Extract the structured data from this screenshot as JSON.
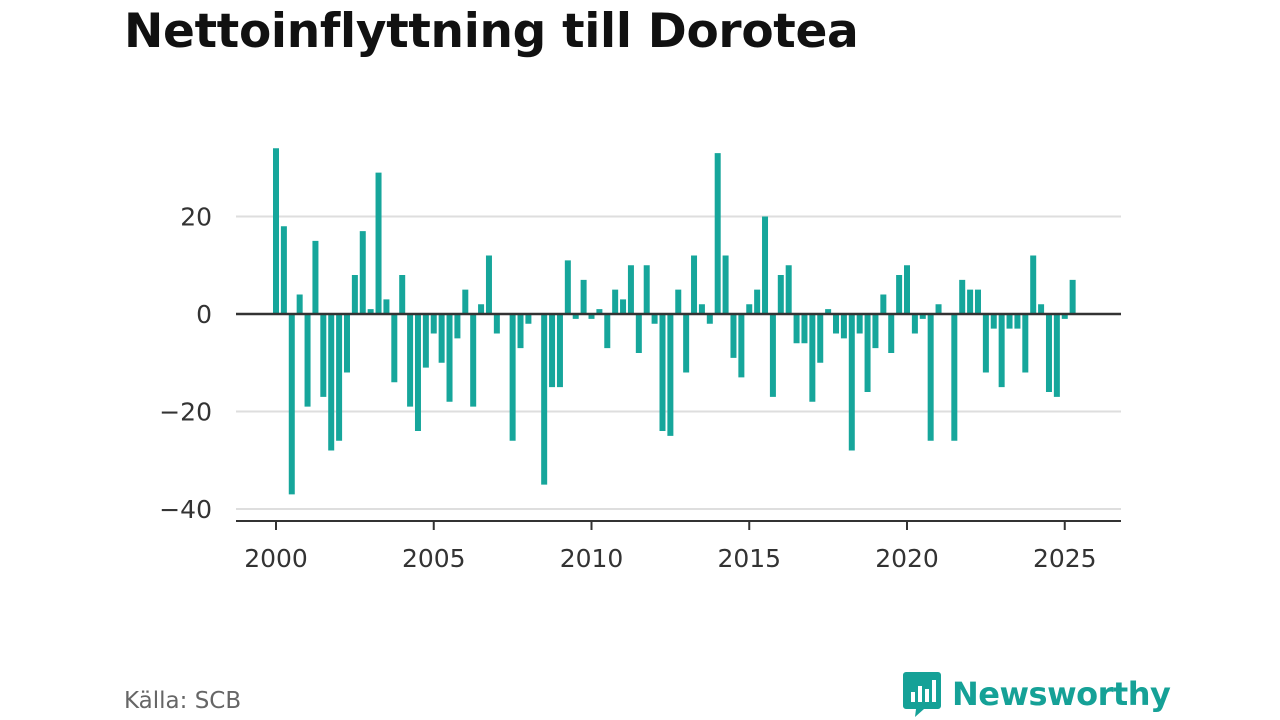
{
  "colors": {
    "bar": "#16a69b",
    "grid": "#dedede",
    "axis": "#333333",
    "brand": "#15a197"
  },
  "footer": {
    "source": "Källa: SCB",
    "brand": "Newsworthy"
  },
  "chart_data": {
    "type": "bar",
    "title": "Nettoinflyttning till Dorotea",
    "xlabel": "",
    "ylabel": "",
    "x_ticks": [
      "2000",
      "2005",
      "2010",
      "2015",
      "2020",
      "2025"
    ],
    "y_ticks": [
      "20",
      "0",
      "−20",
      "−40"
    ],
    "ylim": [
      -42,
      36
    ],
    "xlim": [
      1999.6,
      2026.8
    ],
    "grid": true,
    "series": [
      {
        "x": [
          2000.0,
          2000.25,
          2000.5,
          2000.75,
          2001.0,
          2001.25,
          2001.5,
          2001.75,
          2002.0,
          2002.25,
          2002.5,
          2002.75,
          2003.0,
          2003.25,
          2003.5,
          2003.75,
          2004.0,
          2004.25,
          2004.5,
          2004.75,
          2005.0,
          2005.25,
          2005.5,
          2005.75,
          2006.0,
          2006.25,
          2006.5,
          2006.75,
          2007.0,
          2007.25,
          2007.5,
          2007.75,
          2008.0,
          2008.25,
          2008.5,
          2008.75,
          2009.0,
          2009.25,
          2009.5,
          2009.75,
          2010.0,
          2010.25,
          2010.5,
          2010.75,
          2011.0,
          2011.25,
          2011.5,
          2011.75,
          2012.0,
          2012.25,
          2012.5,
          2012.75,
          2013.0,
          2013.25,
          2013.5,
          2013.75,
          2014.0,
          2014.25,
          2014.5,
          2014.75,
          2015.0,
          2015.25,
          2015.5,
          2015.75,
          2016.0,
          2016.25,
          2016.5,
          2016.75,
          2017.0,
          2017.25,
          2017.5,
          2017.75,
          2018.0,
          2018.25,
          2018.5,
          2018.75,
          2019.0,
          2019.25,
          2019.5,
          2019.75,
          2020.0,
          2020.25,
          2020.5,
          2020.75,
          2021.0,
          2021.25,
          2021.5,
          2021.75,
          2022.0,
          2022.25,
          2022.5,
          2022.75,
          2023.0,
          2023.25,
          2023.5,
          2023.75,
          2024.0,
          2024.25,
          2024.5,
          2024.75,
          2025.0,
          2025.25
        ],
        "values": [
          34,
          18,
          -37,
          4,
          -19,
          15,
          -17,
          -28,
          -26,
          -12,
          8,
          17,
          1,
          29,
          3,
          -14,
          8,
          -19,
          -24,
          -11,
          -4,
          -10,
          -18,
          -5,
          5,
          -19,
          2,
          12,
          -4,
          0,
          -26,
          -7,
          -2,
          0,
          -35,
          -15,
          -15,
          11,
          -1,
          7,
          -1,
          1,
          -7,
          5,
          3,
          10,
          -8,
          10,
          -2,
          -24,
          -25,
          5,
          -12,
          12,
          2,
          -2,
          33,
          12,
          -9,
          -13,
          2,
          5,
          20,
          -17,
          8,
          10,
          -6,
          -6,
          -18,
          -10,
          1,
          -4,
          -5,
          -28,
          -4,
          -16,
          -7,
          4,
          -8,
          8,
          10,
          -4,
          -1,
          -26,
          2,
          0,
          -26,
          7,
          5,
          5,
          -12,
          -3,
          -15,
          -3,
          -3,
          -12,
          12,
          2,
          -16,
          -17,
          -1,
          7
        ]
      }
    ]
  }
}
